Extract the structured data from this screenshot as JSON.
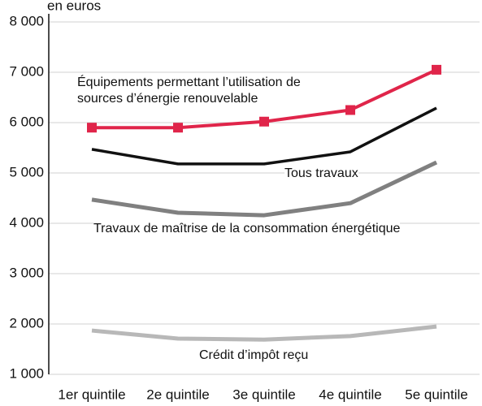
{
  "chart_data": {
    "type": "line",
    "y_label": "en euros",
    "categories": [
      "1er quintile",
      "2e quintile",
      "3e quintile",
      "4e quintile",
      "5e quintile"
    ],
    "series": [
      {
        "name": "Équipements permettant l’utilisation de sources d’énergie renouvelable",
        "color": "#e0254a",
        "values": [
          5900,
          5900,
          6020,
          6250,
          7050
        ]
      },
      {
        "name": "Tous travaux",
        "color": "#111111",
        "values": [
          5470,
          5180,
          5180,
          5420,
          6290
        ]
      },
      {
        "name": "Travaux de maîtrise de la consommation énergétique",
        "color": "#808080",
        "values": [
          4470,
          4210,
          4160,
          4400,
          5210
        ]
      },
      {
        "name": "Crédit d’impôt reçu",
        "color": "#b8b8b8",
        "values": [
          1870,
          1710,
          1690,
          1760,
          1950
        ]
      }
    ],
    "ylim": [
      1000,
      8000
    ],
    "yticks": [
      {
        "value": 1000,
        "label": "1 000"
      },
      {
        "value": 2000,
        "label": "2 000"
      },
      {
        "value": 3000,
        "label": "3 000"
      },
      {
        "value": 4000,
        "label": "4 000"
      },
      {
        "value": 5000,
        "label": "5 000"
      },
      {
        "value": 6000,
        "label": "6 000"
      },
      {
        "value": 7000,
        "label": "7 000"
      },
      {
        "value": 8000,
        "label": "8 000"
      }
    ],
    "grid": true
  }
}
